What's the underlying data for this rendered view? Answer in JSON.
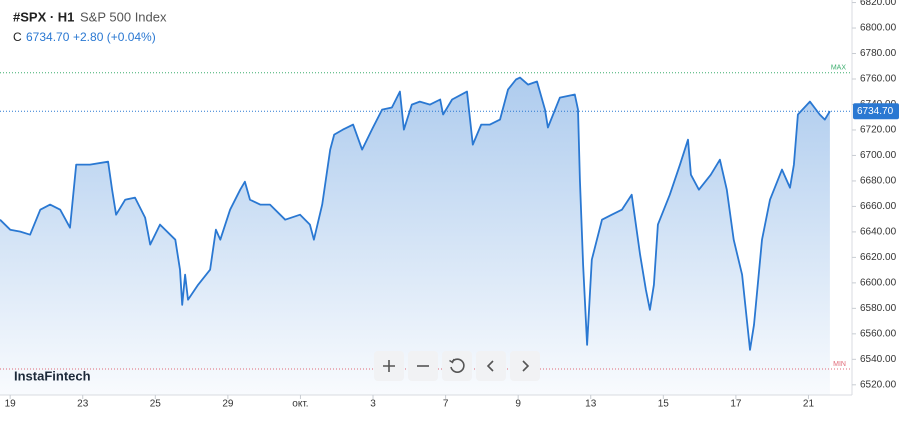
{
  "chart_data": {
    "type": "area",
    "symbol": "#SPX · H1",
    "name": "S&P 500 Index",
    "close_prefix": "C",
    "change": "+2.80 (+0.04%)",
    "brand": "InstaFintech",
    "line_color": "#2a78d2",
    "current": {
      "value": 6734.7,
      "label": "6734.70"
    },
    "reference_lines": [
      {
        "label": "MAX",
        "value": 6764.9,
        "color": "#3cae6e"
      },
      {
        "label": "MIN",
        "value": 6532.4,
        "color": "#e06a78"
      }
    ],
    "x": [
      -0.28,
      0,
      0.28,
      0.55,
      0.83,
      1.1,
      1.38,
      1.65,
      1.82,
      2.2,
      2.7,
      2.81,
      2.92,
      3.17,
      3.44,
      3.72,
      3.86,
      4.13,
      4.55,
      4.68,
      4.74,
      4.82,
      4.9,
      5.18,
      5.51,
      5.67,
      5.79,
      6.06,
      6.34,
      6.47,
      6.61,
      6.89,
      7.16,
      7.58,
      7.99,
      8.26,
      8.37,
      8.6,
      8.82,
      8.93,
      9.17,
      9.45,
      9.7,
      9.97,
      10.25,
      10.52,
      10.74,
      10.85,
      11.07,
      11.29,
      11.57,
      11.85,
      11.93,
      12.18,
      12.59,
      12.75,
      12.98,
      13.22,
      13.5,
      13.72,
      13.94,
      14.05,
      14.27,
      14.52,
      14.74,
      14.82,
      15.15,
      15.56,
      15.65,
      15.7,
      15.79,
      15.9,
      16.03,
      16.31,
      16.58,
      16.86,
      17.13,
      17.36,
      17.52,
      17.63,
      17.74,
      17.85,
      18.18,
      18.46,
      18.68,
      18.76,
      18.98,
      19.31,
      19.56,
      19.75,
      19.94,
      20.17,
      20.39,
      20.5,
      20.72,
      20.94,
      21.27,
      21.49,
      21.6,
      21.71,
      22.04,
      22.31,
      22.45,
      22.59
    ],
    "values": [
      6649.6,
      6641.7,
      6640.2,
      6637.8,
      6657.4,
      6661.4,
      6657.4,
      6643.3,
      6692.8,
      6692.8,
      6695.1,
      6673.1,
      6653.5,
      6665.3,
      6666.9,
      6651.2,
      6630.0,
      6645.7,
      6633.9,
      6610.3,
      6582.8,
      6606.4,
      6586.8,
      6598.5,
      6610.3,
      6641.7,
      6633.9,
      6657.4,
      6673.1,
      6679.4,
      6665.3,
      6661.4,
      6661.4,
      6649.6,
      6653.5,
      6645.7,
      6633.9,
      6661.4,
      6704.6,
      6716.4,
      6720.3,
      6724.2,
      6704.6,
      6720.3,
      6736.0,
      6737.6,
      6750.1,
      6720.3,
      6739.9,
      6742.3,
      6739.9,
      6743.9,
      6732.1,
      6743.9,
      6750.1,
      6708.5,
      6724.2,
      6724.2,
      6728.1,
      6751.7,
      6759.6,
      6761.1,
      6755.6,
      6758.0,
      6736.0,
      6721.9,
      6745.4,
      6747.8,
      6736.0,
      6681.0,
      6614.3,
      6551.4,
      6618.2,
      6649.6,
      6653.5,
      6657.4,
      6669.2,
      6622.1,
      6594.6,
      6578.9,
      6598.5,
      6645.7,
      6669.2,
      6692.8,
      6712.4,
      6684.9,
      6673.1,
      6684.9,
      6696.7,
      6673.1,
      6633.9,
      6606.4,
      6547.5,
      6567.1,
      6633.9,
      6665.3,
      6688.9,
      6674.7,
      6692.8,
      6732.1,
      6742.3,
      6732.1,
      6728.1,
      6734.7
    ],
    "xlim": [
      -0.28,
      23.2
    ],
    "ylim": [
      6512,
      6822
    ],
    "xticks": [
      {
        "value": 0,
        "label": "19"
      },
      {
        "value": 2,
        "label": "23"
      },
      {
        "value": 4,
        "label": "25"
      },
      {
        "value": 6,
        "label": "29"
      },
      {
        "value": 8,
        "label": "окт."
      },
      {
        "value": 10,
        "label": "3"
      },
      {
        "value": 12,
        "label": "7"
      },
      {
        "value": 14,
        "label": "9"
      },
      {
        "value": 16,
        "label": "13"
      },
      {
        "value": 18,
        "label": "15"
      },
      {
        "value": 20,
        "label": "17"
      },
      {
        "value": 22,
        "label": "21"
      }
    ],
    "yticks": [
      {
        "value": 6520,
        "label": "6520.00"
      },
      {
        "value": 6540,
        "label": "6540.00"
      },
      {
        "value": 6560,
        "label": "6560.00"
      },
      {
        "value": 6580,
        "label": "6580.00"
      },
      {
        "value": 6600,
        "label": "6600.00"
      },
      {
        "value": 6620,
        "label": "6620.00"
      },
      {
        "value": 6640,
        "label": "6640.00"
      },
      {
        "value": 6660,
        "label": "6660.00"
      },
      {
        "value": 6680,
        "label": "6680.00"
      },
      {
        "value": 6700,
        "label": "6700.00"
      },
      {
        "value": 6720,
        "label": "6720.00"
      },
      {
        "value": 6740,
        "label": "6740.00"
      },
      {
        "value": 6760,
        "label": "6760.00"
      },
      {
        "value": 6780,
        "label": "6780.00"
      },
      {
        "value": 6800,
        "label": "6800.00"
      },
      {
        "value": 6820,
        "label": "6820.00"
      }
    ]
  }
}
